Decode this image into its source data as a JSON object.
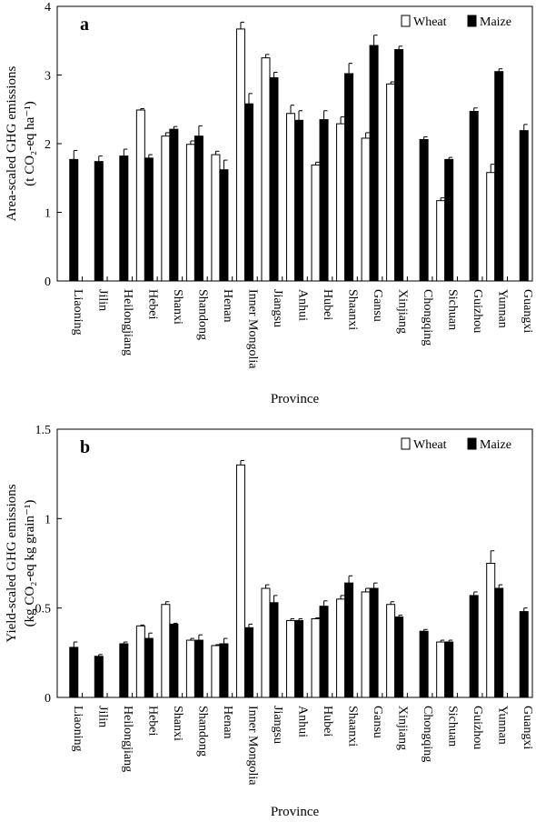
{
  "chart_data": [
    {
      "type": "bar",
      "panel_label": "a",
      "categories": [
        "Liaoning",
        "Jilin",
        "Heilongjiang",
        "Hebei",
        "Shanxi",
        "Shandong",
        "Henan",
        "Inner Mongolia",
        "Jiangsu",
        "Anhui",
        "Hubei",
        "Shaanxi",
        "Gansu",
        "Xinjiang",
        "Chongqing",
        "Sichuan",
        "Guizhou",
        "Yunnan",
        "Guangxi"
      ],
      "ylabel_line1": "Area-scaled GHG emissions",
      "ylabel_line2": "(t CO₂-eq ha⁻¹)",
      "xlabel": "Province",
      "ylim": [
        0,
        4
      ],
      "yticks": [
        0,
        1,
        2,
        3,
        4
      ],
      "ytick_labels": [
        "0",
        "1",
        "2",
        "3",
        "4"
      ],
      "legend_position": "top-right",
      "series": [
        {
          "name": "Wheat",
          "color": "#ffffff",
          "values": [
            null,
            null,
            null,
            2.49,
            2.11,
            1.99,
            1.84,
            3.67,
            3.25,
            2.44,
            1.69,
            2.29,
            2.08,
            2.87,
            null,
            1.17,
            null,
            1.58,
            null
          ],
          "errors": [
            null,
            null,
            null,
            0.02,
            0.05,
            0.05,
            0.05,
            0.1,
            0.05,
            0.12,
            0.04,
            0.1,
            0.08,
            0.03,
            null,
            0.04,
            null,
            0.12,
            null
          ]
        },
        {
          "name": "Maize",
          "color": "#000000",
          "values": [
            1.77,
            1.74,
            1.82,
            1.79,
            2.21,
            2.11,
            1.62,
            2.58,
            2.96,
            2.34,
            2.35,
            3.02,
            3.43,
            3.37,
            2.06,
            1.77,
            2.47,
            3.05,
            2.19
          ],
          "errors": [
            0.13,
            0.08,
            0.1,
            0.05,
            0.04,
            0.15,
            0.14,
            0.15,
            0.08,
            0.14,
            0.13,
            0.15,
            0.15,
            0.05,
            0.04,
            0.03,
            0.05,
            0.04,
            0.09
          ]
        }
      ]
    },
    {
      "type": "bar",
      "panel_label": "b",
      "categories": [
        "Liaoning",
        "Jilin",
        "Heilongjiang",
        "Hebei",
        "Shanxi",
        "Shandong",
        "Henan",
        "Inner Mongolia",
        "Jiangsu",
        "Anhui",
        "Hubei",
        "Shaanxi",
        "Gansu",
        "Xinjiang",
        "Chongqing",
        "Sichuan",
        "Guizhou",
        "Yunnan",
        "Guangxi"
      ],
      "ylabel_line1": "Yield-scaled GHG emissions",
      "ylabel_line2": "(kg CO₂-eq kg grain⁻¹)",
      "xlabel": "Province",
      "ylim": [
        0,
        1.5
      ],
      "yticks": [
        0,
        0.5,
        1,
        1.5
      ],
      "ytick_labels": [
        "0",
        "0.5",
        "1",
        "1.5"
      ],
      "legend_position": "top-right",
      "series": [
        {
          "name": "Wheat",
          "color": "#ffffff",
          "values": [
            null,
            null,
            null,
            0.4,
            0.52,
            0.32,
            0.29,
            1.3,
            0.61,
            0.43,
            0.44,
            0.55,
            0.59,
            0.52,
            null,
            0.31,
            null,
            0.75,
            null
          ],
          "errors": [
            null,
            null,
            null,
            0.005,
            0.015,
            0.01,
            0.005,
            0.025,
            0.02,
            0.01,
            0.005,
            0.02,
            0.02,
            0.015,
            null,
            0.01,
            null,
            0.07,
            null
          ]
        },
        {
          "name": "Maize",
          "color": "#000000",
          "values": [
            0.28,
            0.23,
            0.3,
            0.33,
            0.41,
            0.32,
            0.3,
            0.39,
            0.53,
            0.43,
            0.51,
            0.64,
            0.61,
            0.45,
            0.37,
            0.31,
            0.57,
            0.61,
            0.48
          ],
          "errors": [
            0.03,
            0.01,
            0.01,
            0.03,
            0.005,
            0.03,
            0.03,
            0.02,
            0.04,
            0.01,
            0.03,
            0.04,
            0.03,
            0.01,
            0.01,
            0.01,
            0.02,
            0.02,
            0.02
          ]
        }
      ]
    }
  ]
}
